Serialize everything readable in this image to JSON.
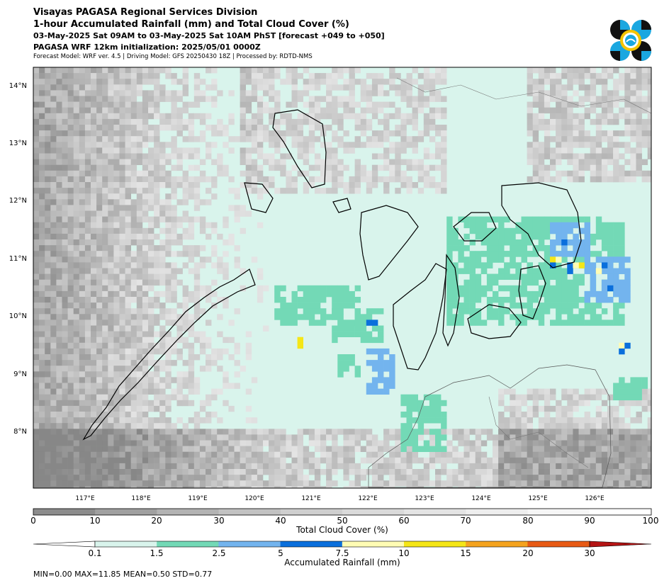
{
  "header": {
    "line1": "Visayas PAGASA Regional Services Division",
    "line2": "1-hour Accumulated Rainfall (mm) and Total Cloud Cover (%)",
    "line3": "03-May-2025 Sat 09AM to 03-May-2025 Sat 10AM PhST [forecast +049 to +050]",
    "line4": "PAGASA WRF 12km initialization: 2025/05/01 0000Z",
    "line5": "Forecast Model: WRF ver. 4.5 | Driving Model: GFS 20250430 18Z | Processed by: RDTD-NMS"
  },
  "map": {
    "lat_labels": [
      "14°N",
      "13°N",
      "12°N",
      "11°N",
      "10°N",
      "9°N",
      "8°N"
    ],
    "lon_labels": [
      "117°E",
      "118°E",
      "119°E",
      "120°E",
      "121°E",
      "122°E",
      "123°E",
      "124°E",
      "125°E",
      "126°E"
    ]
  },
  "cloud_colorbar": {
    "label": "Total Cloud Cover (%)",
    "ticks": [
      "0",
      "10",
      "20",
      "30",
      "40",
      "50",
      "60",
      "70",
      "80",
      "90",
      "100"
    ],
    "colors": [
      "#8c8c8c",
      "#a0a0a0",
      "#b3b3b3",
      "#c2c2c2",
      "#cfcfcf",
      "#dadada",
      "#e4e4e4",
      "#eeeeee",
      "#f6f6f6",
      "#ffffff"
    ]
  },
  "rain_colorbar": {
    "label": "Accumulated Rainfall (mm)",
    "ticks": [
      "0.1",
      "1.5",
      "2.5",
      "5",
      "7.5",
      "10",
      "15",
      "20",
      "30"
    ],
    "colors": [
      "#d9f4ec",
      "#73d9b6",
      "#73b4ee",
      "#0a6fdc",
      "#fffcb4",
      "#f5e617",
      "#f5a31e",
      "#e85a14",
      "#b41414"
    ]
  },
  "stats": {
    "text": "MIN=0.00   MAX=11.85   MEAN=0.50   STD=0.77"
  }
}
